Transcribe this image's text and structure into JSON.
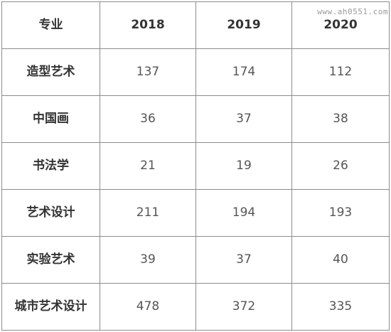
{
  "table": {
    "headers": [
      "专业",
      "2018",
      "2019",
      "2020"
    ],
    "rows": [
      {
        "major": "造型艺术",
        "values": [
          "137",
          "174",
          "112"
        ]
      },
      {
        "major": "中国画",
        "values": [
          "36",
          "37",
          "38"
        ]
      },
      {
        "major": "书法学",
        "values": [
          "21",
          "19",
          "26"
        ]
      },
      {
        "major": "艺术设计",
        "values": [
          "211",
          "194",
          "193"
        ]
      },
      {
        "major": "实验艺术",
        "values": [
          "39",
          "37",
          "40"
        ]
      },
      {
        "major": "城市艺术设计",
        "values": [
          "478",
          "372",
          "335"
        ]
      }
    ]
  },
  "watermark": "www.ah0551.com"
}
